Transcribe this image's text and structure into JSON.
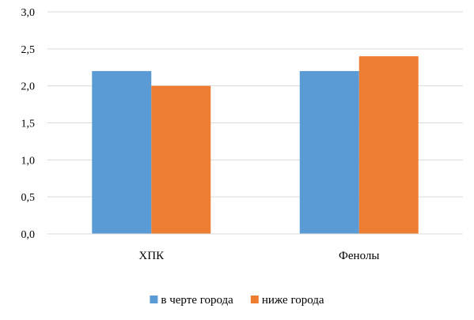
{
  "chart_data": {
    "type": "bar",
    "categories": [
      "ХПК",
      "Фенолы"
    ],
    "series": [
      {
        "name": "в черте города",
        "values": [
          2.2,
          2.2
        ],
        "color": "#5B9BD5"
      },
      {
        "name": "ниже города",
        "values": [
          2.0,
          2.4
        ],
        "color": "#ED7D31"
      }
    ],
    "ylim": [
      0,
      3
    ],
    "y_ticks": [
      "0,0",
      "0,5",
      "1,0",
      "1,5",
      "2,0",
      "2,5",
      "3,0"
    ],
    "grid": true,
    "legend_position": "bottom"
  }
}
